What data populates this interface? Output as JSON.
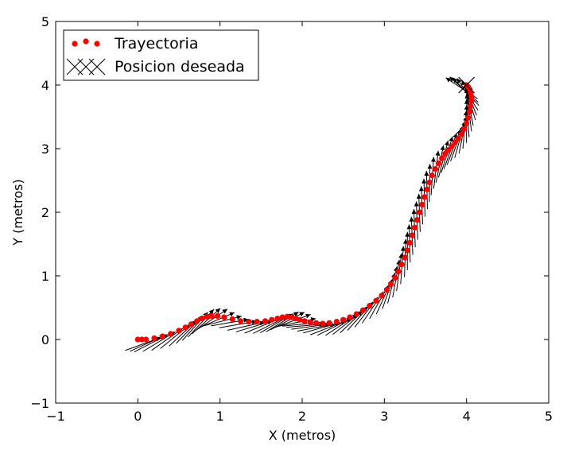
{
  "chart_data": {
    "type": "scatter",
    "xlabel": "X (metros)",
    "ylabel": "Y (metros)",
    "xlim": [
      -1,
      5
    ],
    "ylim": [
      -1,
      5
    ],
    "xticks": [
      "−1",
      "0",
      "1",
      "2",
      "3",
      "4",
      "5"
    ],
    "yticks": [
      "−1",
      "0",
      "1",
      "2",
      "3",
      "4",
      "5"
    ],
    "grid": false,
    "legend_position": "top-left",
    "colors": {
      "trajectory": "#ff0000",
      "target": "#000000",
      "arrows": "#000000"
    },
    "series": [
      {
        "name": "Trayectoria",
        "marker": "circle",
        "color": "#ff0000",
        "x": [
          0.0,
          0.05,
          0.1,
          0.2,
          0.3,
          0.4,
          0.5,
          0.58,
          0.65,
          0.72,
          0.78,
          0.84,
          0.9,
          0.97,
          1.05,
          1.15,
          1.25,
          1.35,
          1.45,
          1.55,
          1.63,
          1.7,
          1.76,
          1.82,
          1.87,
          1.92,
          1.97,
          2.03,
          2.1,
          2.17,
          2.25,
          2.33,
          2.42,
          2.5,
          2.58,
          2.66,
          2.74,
          2.82,
          2.9,
          2.97,
          3.03,
          3.08,
          3.13,
          3.17,
          3.21,
          3.25,
          3.28,
          3.31,
          3.34,
          3.37,
          3.4,
          3.43,
          3.46,
          3.49,
          3.52,
          3.55,
          3.58,
          3.62,
          3.66,
          3.7,
          3.74,
          3.78,
          3.82,
          3.86,
          3.9,
          3.94,
          3.97,
          4.0,
          4.02,
          4.04,
          4.05,
          4.06,
          4.06,
          4.05,
          4.04,
          4.02,
          4.0
        ],
        "y": [
          0.0,
          0.0,
          0.0,
          0.02,
          0.05,
          0.09,
          0.14,
          0.19,
          0.24,
          0.29,
          0.33,
          0.36,
          0.37,
          0.37,
          0.35,
          0.32,
          0.29,
          0.28,
          0.28,
          0.29,
          0.31,
          0.33,
          0.35,
          0.36,
          0.35,
          0.33,
          0.31,
          0.29,
          0.27,
          0.26,
          0.25,
          0.26,
          0.28,
          0.31,
          0.35,
          0.4,
          0.46,
          0.53,
          0.61,
          0.69,
          0.78,
          0.87,
          0.97,
          1.07,
          1.18,
          1.29,
          1.4,
          1.52,
          1.64,
          1.76,
          1.88,
          2.0,
          2.12,
          2.24,
          2.36,
          2.47,
          2.58,
          2.68,
          2.77,
          2.85,
          2.92,
          2.98,
          3.04,
          3.1,
          3.16,
          3.23,
          3.31,
          3.4,
          3.49,
          3.58,
          3.67,
          3.75,
          3.82,
          3.88,
          3.93,
          3.97,
          4.0
        ]
      },
      {
        "name": "Posicion deseada",
        "marker": "x",
        "color": "#000000",
        "x": [
          4.0
        ],
        "y": [
          4.0
        ]
      }
    ]
  }
}
